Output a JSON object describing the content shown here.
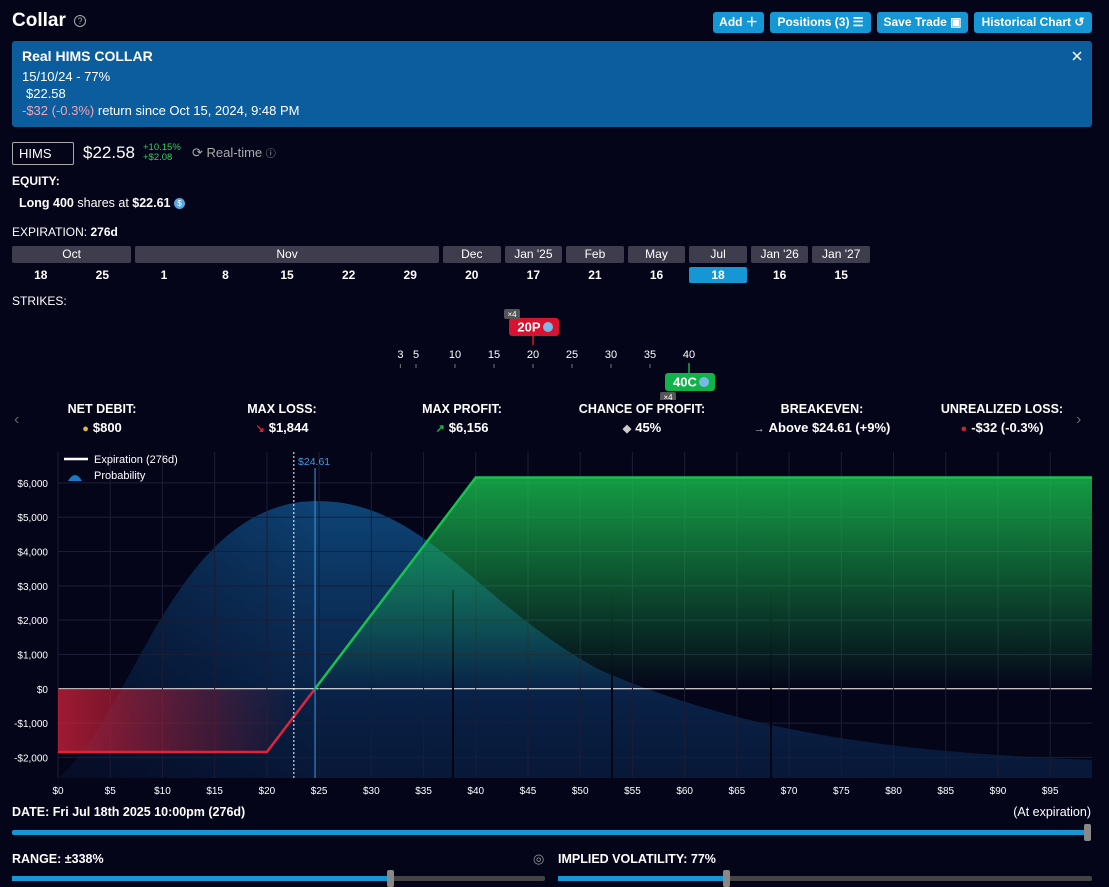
{
  "header": {
    "title": "Collar",
    "buttons": [
      "Add",
      "Positions (3)",
      "Save Trade",
      "Historical Chart"
    ]
  },
  "banner": {
    "title": "Real HIMS COLLAR",
    "subtitle": "15/10/24 - 77%",
    "price": "$22.58",
    "return_value": "-$32 (-0.3%)",
    "return_text": "return since Oct 15, 2024, 9:48 PM"
  },
  "quote": {
    "symbol": "HIMS",
    "price": "$22.58",
    "change_pct": "+10.15%",
    "change_abs": "+$2.08",
    "mode": "Real-time"
  },
  "equity": {
    "label": "EQUITY:",
    "side": "Long",
    "shares": "400",
    "text": "shares at",
    "price": "$22.61"
  },
  "expiration": {
    "label": "EXPIRATION:",
    "days_left": "276d",
    "months": [
      {
        "name": "Oct",
        "days": [
          "18",
          "25"
        ]
      },
      {
        "name": "Nov",
        "days": [
          "1",
          "8",
          "15",
          "22",
          "29"
        ]
      },
      {
        "name": "Dec",
        "days": [
          "20"
        ]
      },
      {
        "name": "Jan '25",
        "days": [
          "17"
        ]
      },
      {
        "name": "Feb",
        "days": [
          "21"
        ]
      },
      {
        "name": "May",
        "days": [
          "16"
        ]
      },
      {
        "name": "Jul",
        "days": [
          "18"
        ],
        "selected": true
      },
      {
        "name": "Jan '26",
        "days": [
          "16"
        ]
      },
      {
        "name": "Jan '27",
        "days": [
          "15"
        ]
      }
    ]
  },
  "strikes": {
    "label": "STRIKES:",
    "ticks": [
      3,
      5,
      10,
      15,
      20,
      25,
      30,
      35,
      40
    ],
    "legs": [
      {
        "label": "20P",
        "count": "×4",
        "strike": 20,
        "type": "put",
        "color": "#d9132f"
      },
      {
        "label": "40C",
        "count": "×4",
        "strike": 40,
        "type": "call",
        "color": "#0fb347"
      }
    ]
  },
  "stats": [
    {
      "label": "NET DEBIT:",
      "value": "$800"
    },
    {
      "label": "MAX LOSS:",
      "value": "$1,844"
    },
    {
      "label": "MAX PROFIT:",
      "value": "$6,156"
    },
    {
      "label": "CHANCE OF PROFIT:",
      "value": "45%"
    },
    {
      "label": "BREAKEVEN:",
      "value": "Above $24.61 (+9%)"
    },
    {
      "label": "UNREALIZED LOSS:",
      "value": "-$32 (-0.3%)"
    }
  ],
  "chart": {
    "type": "line",
    "legend": [
      "Expiration (276d)",
      "Probability"
    ],
    "xlim": [
      0,
      99
    ],
    "ylim": [
      -2600,
      6900
    ],
    "xticks": [
      {
        "value": 0,
        "label": "$0"
      },
      {
        "value": 5,
        "label": "$5"
      },
      {
        "value": 10,
        "label": "$10"
      },
      {
        "value": 15,
        "label": "$15"
      },
      {
        "value": 20,
        "label": "$20"
      },
      {
        "value": 25,
        "label": "$25"
      },
      {
        "value": 30,
        "label": "$30"
      },
      {
        "value": 35,
        "label": "$35"
      },
      {
        "value": 40,
        "label": "$40"
      },
      {
        "value": 45,
        "label": "$45"
      },
      {
        "value": 50,
        "label": "$50"
      },
      {
        "value": 55,
        "label": "$55"
      },
      {
        "value": 60,
        "label": "$60"
      },
      {
        "value": 65,
        "label": "$65"
      },
      {
        "value": 70,
        "label": "$70"
      },
      {
        "value": 75,
        "label": "$75"
      },
      {
        "value": 80,
        "label": "$80"
      },
      {
        "value": 85,
        "label": "$85"
      },
      {
        "value": 90,
        "label": "$90"
      },
      {
        "value": 95,
        "label": "$95"
      }
    ],
    "yticks": [
      {
        "value": -2000,
        "label": "-$2,000"
      },
      {
        "value": -1000,
        "label": "-$1,000"
      },
      {
        "value": 0,
        "label": "$0"
      },
      {
        "value": 1000,
        "label": "$1,000"
      },
      {
        "value": 2000,
        "label": "$2,000"
      },
      {
        "value": 3000,
        "label": "$3,000"
      },
      {
        "value": 4000,
        "label": "$4,000"
      },
      {
        "value": 5000,
        "label": "$5,000"
      },
      {
        "value": 6000,
        "label": "$6,000"
      }
    ],
    "current_price": 22.58,
    "breakeven": {
      "value": 24.61,
      "label": "$24.61"
    },
    "payoff": {
      "x": [
        0,
        20,
        40,
        99
      ],
      "y": [
        -1844,
        -1844,
        6156,
        6156
      ]
    },
    "profit_color": "#19c04f",
    "loss_color": "#e0233c",
    "grid": true
  },
  "controls": {
    "date_label": "DATE:",
    "date_value": "Fri Jul 18th 2025 10:00pm (276d)",
    "date_note": "(At expiration)",
    "range_label": "RANGE:",
    "range_value": "±338%",
    "iv_label": "IMPLIED VOLATILITY:",
    "iv_value": "77%"
  }
}
